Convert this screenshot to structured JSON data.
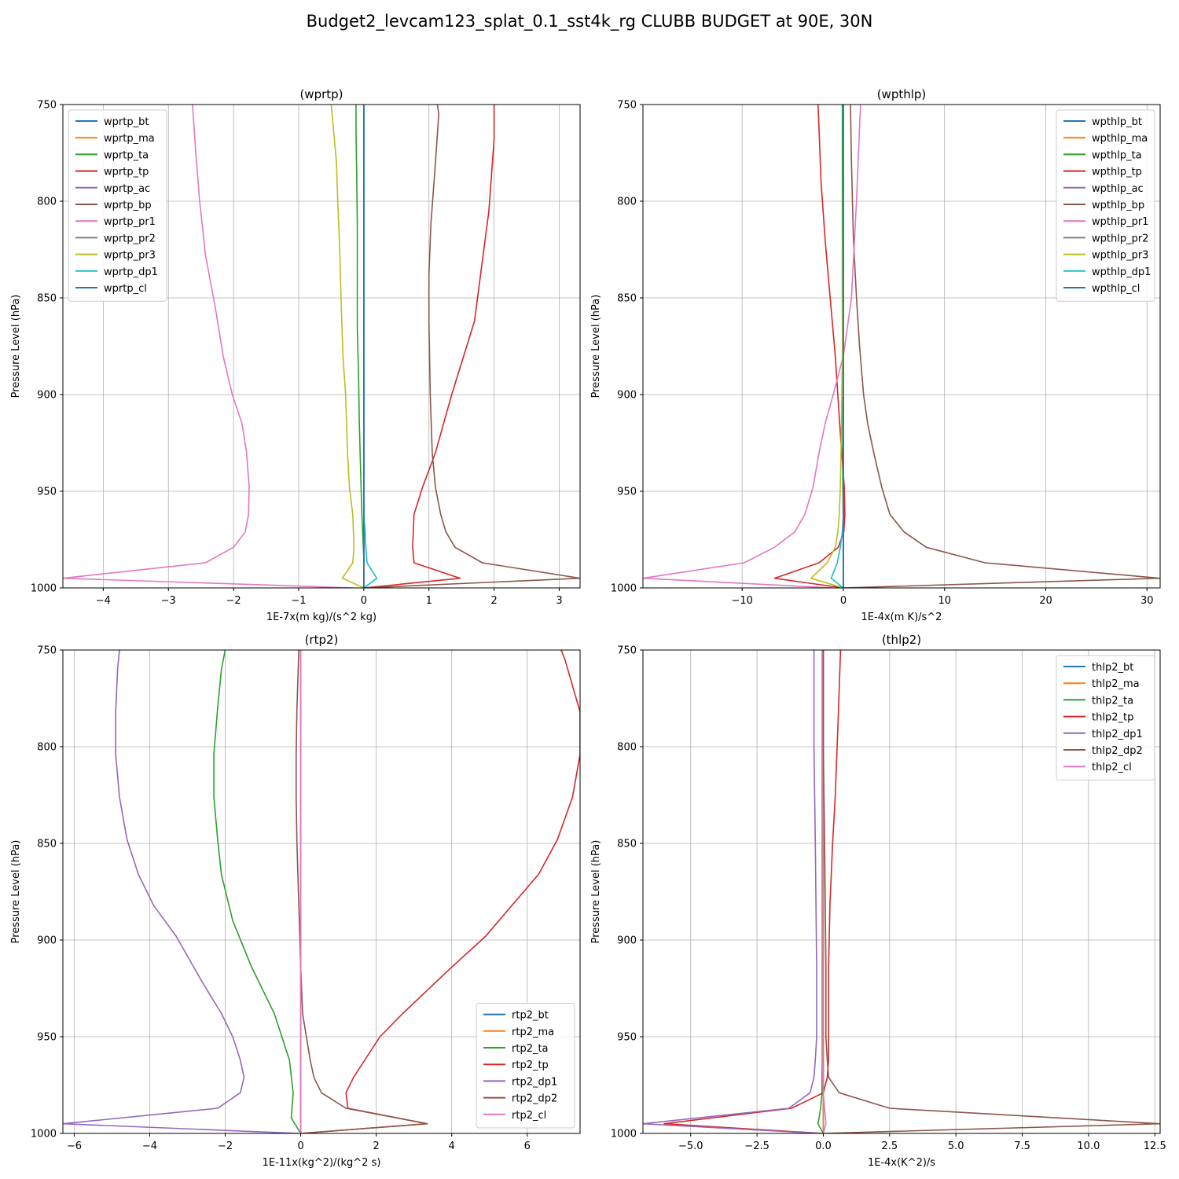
{
  "title": "Budget2_levcam123_splat_0.1_sst4k_rg CLUBB BUDGET at 90E, 30N",
  "colors": [
    "#1f77b4",
    "#ff7f0e",
    "#2ca02c",
    "#d62728",
    "#9467bd",
    "#8c564b",
    "#e377c2",
    "#7f7f7f",
    "#bcbd22",
    "#17becf",
    "#1f77b4"
  ],
  "chart_data": [
    {
      "type": "line",
      "title": "(wprtp)",
      "xlabel": "1E-7x(m kg)/(s^2 kg)",
      "ylabel": "Pressure Level (hPa)",
      "xlim": [
        -4.62,
        3.32
      ],
      "ylim": [
        1000,
        750
      ],
      "xticks": [
        -4,
        -3,
        -2,
        -1,
        0,
        1,
        2,
        3
      ],
      "xticklabels": [
        "−4",
        "−3",
        "−2",
        "−1",
        "0",
        "1",
        "2",
        "3"
      ],
      "yticks": [
        750,
        800,
        850,
        900,
        950,
        1000
      ],
      "yticklabels": [
        "750",
        "800",
        "850",
        "900",
        "950",
        "1000"
      ],
      "legend_loc": "upper-left",
      "grid": true,
      "series": [
        {
          "name": "wprtp_bt",
          "color_index": 0,
          "x": [
            0,
            0
          ],
          "y": [
            1000,
            750
          ]
        },
        {
          "name": "wprtp_ma",
          "color_index": 1,
          "x": [
            0,
            0
          ],
          "y": [
            1000,
            750
          ]
        },
        {
          "name": "wprtp_ta",
          "color_index": 2,
          "x": [
            0,
            0.0,
            0.0,
            -0.03,
            -0.05,
            -0.07,
            -0.08,
            -0.1,
            -0.1,
            -0.1,
            -0.11,
            -0.12,
            -0.12
          ],
          "y": [
            1000,
            992,
            985,
            962,
            938,
            914,
            890,
            866,
            838,
            812,
            786,
            762,
            750
          ]
        },
        {
          "name": "wprtp_tp",
          "color_index": 3,
          "x": [
            0,
            1.48,
            0.77,
            0.75,
            0.77,
            0.9,
            1.1,
            1.35,
            1.7,
            1.92,
            2.0,
            2.0
          ],
          "y": [
            1000,
            995,
            987,
            979,
            962,
            948,
            930,
            900,
            862,
            805,
            768,
            750
          ]
        },
        {
          "name": "wprtp_ac",
          "color_index": 4,
          "x": [
            0,
            0
          ],
          "y": [
            1000,
            750
          ]
        },
        {
          "name": "wprtp_bp",
          "color_index": 5,
          "x": [
            0,
            3.32,
            1.82,
            1.4,
            1.26,
            1.18,
            1.1,
            1.05,
            1.02,
            1.0,
            1.0,
            1.03,
            1.1,
            1.15,
            1.13
          ],
          "y": [
            1000,
            995,
            987,
            979,
            971,
            962,
            948,
            930,
            900,
            862,
            838,
            812,
            780,
            755,
            750
          ]
        },
        {
          "name": "wprtp_pr1",
          "color_index": 6,
          "x": [
            -0.15,
            -4.62,
            -2.43,
            -2.0,
            -1.82,
            -1.77,
            -1.76,
            -1.8,
            -1.87,
            -2.02,
            -2.16,
            -2.28,
            -2.43,
            -2.52,
            -2.58,
            -2.63
          ],
          "y": [
            1000,
            995,
            987,
            979,
            971,
            962,
            948,
            930,
            915,
            900,
            880,
            855,
            828,
            800,
            775,
            750
          ]
        },
        {
          "name": "wprtp_pr2",
          "color_index": 7,
          "x": [
            0,
            0
          ],
          "y": [
            1000,
            750
          ]
        },
        {
          "name": "wprtp_pr3",
          "color_index": 8,
          "x": [
            0,
            -0.33,
            -0.17,
            -0.15,
            -0.17,
            -0.22,
            -0.25,
            -0.28,
            -0.32,
            -0.35,
            -0.37,
            -0.4,
            -0.42,
            -0.5
          ],
          "y": [
            1000,
            995,
            987,
            979,
            962,
            948,
            930,
            900,
            880,
            850,
            825,
            800,
            780,
            750
          ]
        },
        {
          "name": "wprtp_dp1",
          "color_index": 9,
          "x": [
            0,
            0.2,
            0.05,
            0.03,
            0.02,
            0.0,
            0,
            0
          ],
          "y": [
            1000,
            995,
            987,
            979,
            971,
            962,
            948,
            750
          ]
        },
        {
          "name": "wprtp_cl",
          "color_index": 10,
          "x": [
            0,
            0
          ],
          "y": [
            1000,
            750
          ]
        }
      ]
    },
    {
      "type": "line",
      "title": "(wpthlp)",
      "xlabel": "1E-4x(m K)/s^2",
      "ylabel": "Pressure Level (hPa)",
      "xlim": [
        -19.8,
        31.3
      ],
      "ylim": [
        1000,
        750
      ],
      "xticks": [
        -10,
        0,
        10,
        20,
        30
      ],
      "xticklabels": [
        "−10",
        "0",
        "10",
        "20",
        "30"
      ],
      "yticks": [
        750,
        800,
        850,
        900,
        950,
        1000
      ],
      "yticklabels": [
        "750",
        "800",
        "850",
        "900",
        "950",
        "1000"
      ],
      "legend_loc": "upper-right",
      "grid": true,
      "series": [
        {
          "name": "wpthlp_bt",
          "color_index": 0,
          "x": [
            0,
            0
          ],
          "y": [
            1000,
            750
          ]
        },
        {
          "name": "wpthlp_ma",
          "color_index": 1,
          "x": [
            0,
            0
          ],
          "y": [
            1000,
            750
          ]
        },
        {
          "name": "wpthlp_ta",
          "color_index": 2,
          "x": [
            0,
            0.0,
            0.0,
            -0.05,
            -0.08,
            -0.1,
            -0.1,
            -0.1
          ],
          "y": [
            1000,
            987,
            971,
            948,
            900,
            850,
            800,
            750
          ]
        },
        {
          "name": "wpthlp_tp",
          "color_index": 3,
          "x": [
            0,
            -6.8,
            -2.4,
            -0.5,
            0.05,
            0.15,
            0.1,
            -0.3,
            -0.8,
            -1.3,
            -1.8,
            -2.2,
            -2.5
          ],
          "y": [
            1000,
            995,
            987,
            979,
            971,
            962,
            948,
            920,
            880,
            850,
            820,
            790,
            750
          ]
        },
        {
          "name": "wpthlp_ac",
          "color_index": 4,
          "x": [
            0,
            0
          ],
          "y": [
            1000,
            750
          ]
        },
        {
          "name": "wpthlp_bp",
          "color_index": 5,
          "x": [
            0,
            31.3,
            14.0,
            8.2,
            6.0,
            4.6,
            3.8,
            3.0,
            2.4,
            2.0,
            1.6,
            1.3,
            1.0,
            0.8,
            0.7
          ],
          "y": [
            1000,
            995,
            987,
            979,
            971,
            962,
            948,
            930,
            915,
            900,
            875,
            850,
            820,
            780,
            750
          ]
        },
        {
          "name": "wpthlp_pr1",
          "color_index": 6,
          "x": [
            -1.0,
            -19.8,
            -9.8,
            -6.8,
            -4.8,
            -3.8,
            -3.0,
            -2.4,
            -1.8,
            -1.0,
            0.0,
            0.8,
            1.3,
            1.7
          ],
          "y": [
            1000,
            995,
            987,
            979,
            971,
            962,
            948,
            930,
            915,
            900,
            880,
            850,
            800,
            750
          ]
        },
        {
          "name": "wpthlp_pr2",
          "color_index": 7,
          "x": [
            0,
            0
          ],
          "y": [
            1000,
            750
          ]
        },
        {
          "name": "wpthlp_pr3",
          "color_index": 8,
          "x": [
            0,
            -3.2,
            -1.6,
            -0.8,
            -0.55,
            -0.4,
            -0.3,
            -0.2,
            -0.1,
            -0.05,
            0.0
          ],
          "y": [
            1000,
            995,
            987,
            979,
            971,
            962,
            948,
            920,
            880,
            820,
            750
          ]
        },
        {
          "name": "wpthlp_dp1",
          "color_index": 9,
          "x": [
            0,
            -1.2,
            -0.6,
            -0.3,
            -0.1,
            0.0,
            0.0
          ],
          "y": [
            1000,
            995,
            987,
            979,
            971,
            962,
            750
          ]
        },
        {
          "name": "wpthlp_cl",
          "color_index": 10,
          "x": [
            0,
            0
          ],
          "y": [
            1000,
            750
          ]
        }
      ]
    },
    {
      "type": "line",
      "title": "(rtp2)",
      "xlabel": "1E-11x(kg^2)/(kg^2 s)",
      "ylabel": "Pressure Level (hPa)",
      "xlim": [
        -6.3,
        7.4
      ],
      "ylim": [
        1000,
        750
      ],
      "xticks": [
        -6,
        -4,
        -2,
        0,
        2,
        4,
        6
      ],
      "xticklabels": [
        "−6",
        "−4",
        "−2",
        "0",
        "2",
        "4",
        "6"
      ],
      "yticks": [
        750,
        800,
        850,
        900,
        950,
        1000
      ],
      "yticklabels": [
        "750",
        "800",
        "850",
        "900",
        "950",
        "1000"
      ],
      "legend_loc": "lower-right",
      "grid": true,
      "series": [
        {
          "name": "rtp2_bt",
          "color_index": 0,
          "x": [
            0,
            0
          ],
          "y": [
            1000,
            750
          ]
        },
        {
          "name": "rtp2_ma",
          "color_index": 1,
          "x": [
            0,
            0
          ],
          "y": [
            1000,
            750
          ]
        },
        {
          "name": "rtp2_ta",
          "color_index": 2,
          "x": [
            0,
            -0.25,
            -0.2,
            -0.3,
            -0.5,
            -0.7,
            -1.3,
            -1.8,
            -2.1,
            -2.2,
            -2.3,
            -2.3,
            -2.2,
            -2.1,
            -2.0
          ],
          "y": [
            1000,
            992,
            979,
            962,
            950,
            938,
            914,
            890,
            866,
            848,
            826,
            804,
            780,
            760,
            750
          ]
        },
        {
          "name": "rtp2_tp",
          "color_index": 3,
          "x": [
            0,
            3.35,
            1.25,
            1.2,
            1.4,
            1.7,
            2.1,
            2.7,
            4.0,
            4.9,
            5.6,
            6.3,
            6.8,
            7.2,
            7.4,
            7.4,
            7.0,
            6.9
          ],
          "y": [
            1000,
            995,
            987,
            979,
            971,
            962,
            950,
            938,
            914,
            898,
            882,
            866,
            848,
            826,
            804,
            782,
            755,
            750
          ]
        },
        {
          "name": "rtp2_dp1",
          "color_index": 4,
          "x": [
            -0.05,
            -6.3,
            -2.2,
            -1.6,
            -1.5,
            -1.6,
            -1.8,
            -2.1,
            -2.6,
            -3.3,
            -3.9,
            -4.3,
            -4.6,
            -4.8,
            -4.9,
            -4.9,
            -4.85,
            -4.8
          ],
          "y": [
            1000,
            995,
            987,
            979,
            971,
            962,
            950,
            938,
            922,
            898,
            882,
            866,
            848,
            826,
            804,
            782,
            760,
            750
          ]
        },
        {
          "name": "rtp2_dp2",
          "color_index": 5,
          "x": [
            0,
            3.35,
            1.2,
            0.55,
            0.35,
            0.25,
            0.15,
            0.05,
            0.0,
            -0.05,
            -0.1,
            -0.12,
            -0.12,
            -0.1,
            -0.05
          ],
          "y": [
            1000,
            995,
            987,
            979,
            971,
            962,
            950,
            938,
            914,
            882,
            850,
            826,
            804,
            780,
            750
          ]
        },
        {
          "name": "rtp2_cl",
          "color_index": 6,
          "x": [
            0,
            0
          ],
          "y": [
            1000,
            750
          ]
        }
      ]
    },
    {
      "type": "line",
      "title": "(thlp2)",
      "xlabel": "1E-4x(K^2)/s",
      "ylabel": "Pressure Level (hPa)",
      "xlim": [
        -6.8,
        12.7
      ],
      "ylim": [
        1000,
        750
      ],
      "xticks": [
        -5,
        -2.5,
        0,
        2.5,
        5,
        7.5,
        10,
        12.5
      ],
      "xticklabels": [
        "−5.0",
        "−2.5",
        "0.0",
        "2.5",
        "5.0",
        "7.5",
        "10.0",
        "12.5"
      ],
      "yticks": [
        750,
        800,
        850,
        900,
        950,
        1000
      ],
      "yticklabels": [
        "750",
        "800",
        "850",
        "900",
        "950",
        "1000"
      ],
      "legend_loc": "upper-right",
      "grid": true,
      "series": [
        {
          "name": "thlp2_bt",
          "color_index": 0,
          "x": [
            0,
            0
          ],
          "y": [
            1000,
            750
          ]
        },
        {
          "name": "thlp2_ma",
          "color_index": 1,
          "x": [
            0,
            0
          ],
          "y": [
            1000,
            750
          ]
        },
        {
          "name": "thlp2_ta",
          "color_index": 2,
          "x": [
            0,
            -0.2,
            -0.1,
            -0.05,
            -0.05,
            -0.05,
            -0.05
          ],
          "y": [
            1000,
            995,
            987,
            979,
            950,
            900,
            750
          ]
        },
        {
          "name": "thlp2_tp",
          "color_index": 3,
          "x": [
            0,
            -6.0,
            -1.2,
            0.0,
            0.15,
            0.2,
            0.2,
            0.2,
            0.25,
            0.35,
            0.45,
            0.55,
            0.65
          ],
          "y": [
            1000,
            995,
            987,
            979,
            971,
            962,
            950,
            914,
            882,
            850,
            826,
            790,
            750
          ]
        },
        {
          "name": "thlp2_dp1",
          "color_index": 4,
          "x": [
            -0.1,
            -6.8,
            -1.3,
            -0.5,
            -0.35,
            -0.3,
            -0.25,
            -0.25,
            -0.3,
            -0.35,
            -0.35
          ],
          "y": [
            1000,
            995,
            987,
            979,
            971,
            962,
            950,
            914,
            850,
            800,
            750
          ]
        },
        {
          "name": "thlp2_dp2",
          "color_index": 5,
          "x": [
            0,
            12.7,
            2.5,
            0.6,
            0.2,
            0.15,
            0.1,
            0.1,
            0.05,
            0.0,
            0.0
          ],
          "y": [
            1000,
            995,
            987,
            979,
            971,
            962,
            950,
            914,
            850,
            800,
            750
          ]
        },
        {
          "name": "thlp2_cl",
          "color_index": 6,
          "x": [
            0,
            0.1,
            0.05,
            0.0,
            -0.05,
            -0.05,
            -0.05
          ],
          "y": [
            1000,
            995,
            987,
            979,
            962,
            900,
            750
          ]
        }
      ]
    }
  ]
}
